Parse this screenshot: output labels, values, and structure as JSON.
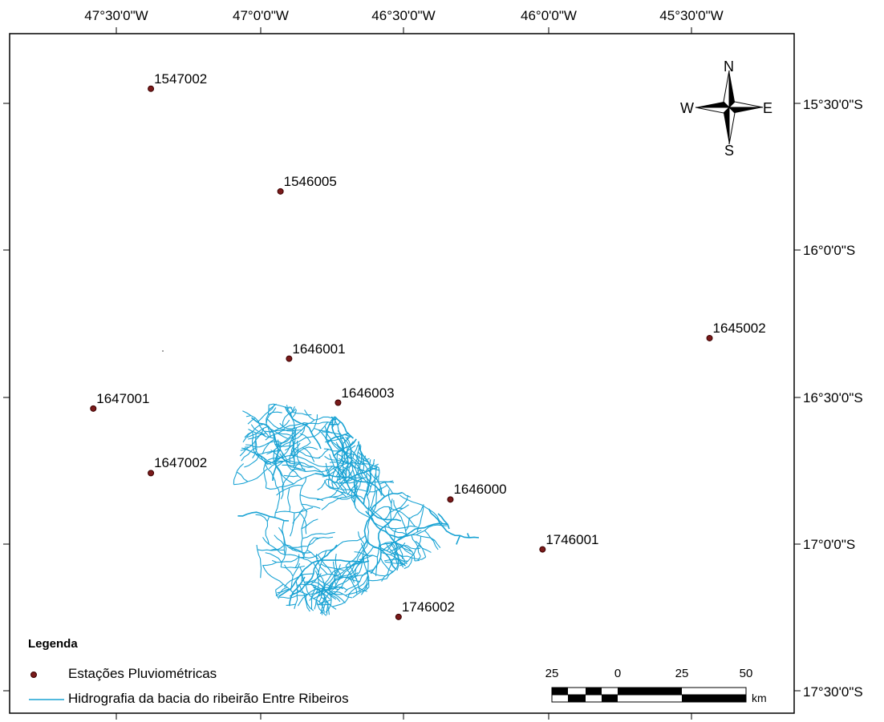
{
  "map": {
    "longitude_labels": [
      "47°30'0\"W",
      "47°0'0\"W",
      "46°30'0\"W",
      "46°0'0\"W",
      "45°30'0\"W"
    ],
    "latitude_labels": [
      "15°30'0\"S",
      "16°0'0\"S",
      "16°30'0\"S",
      "17°0'0\"S",
      "17°30'0\"S"
    ],
    "stations": [
      {
        "id": "1547002",
        "lon": -47.38,
        "lat": -15.45
      },
      {
        "id": "1546005",
        "lon": -46.93,
        "lat": -15.8
      },
      {
        "id": "1646001",
        "lon": -46.9,
        "lat": -16.37
      },
      {
        "id": "1645002",
        "lon": -45.44,
        "lat": -16.3
      },
      {
        "id": "1647001",
        "lon": -47.58,
        "lat": -16.54
      },
      {
        "id": "1646003",
        "lon": -46.73,
        "lat": -16.52
      },
      {
        "id": "1647002",
        "lon": -47.38,
        "lat": -16.76
      },
      {
        "id": "1646000",
        "lon": -46.34,
        "lat": -16.85
      },
      {
        "id": "1746001",
        "lon": -46.02,
        "lat": -17.02
      },
      {
        "id": "1746002",
        "lon": -46.52,
        "lat": -17.25
      }
    ],
    "station_color": "#7a1a1a",
    "river_color": "#1aa3d4"
  },
  "compass": {
    "n": "N",
    "s": "S",
    "e": "E",
    "w": "W"
  },
  "legend": {
    "title": "Legenda",
    "stations_label": "Estações Pluviométricas",
    "hydro_label": "Hidrografia da bacia do ribeirão Entre Ribeiros"
  },
  "scale_bar": {
    "labels": [
      "25",
      "0",
      "25",
      "50"
    ],
    "unit": "km"
  }
}
